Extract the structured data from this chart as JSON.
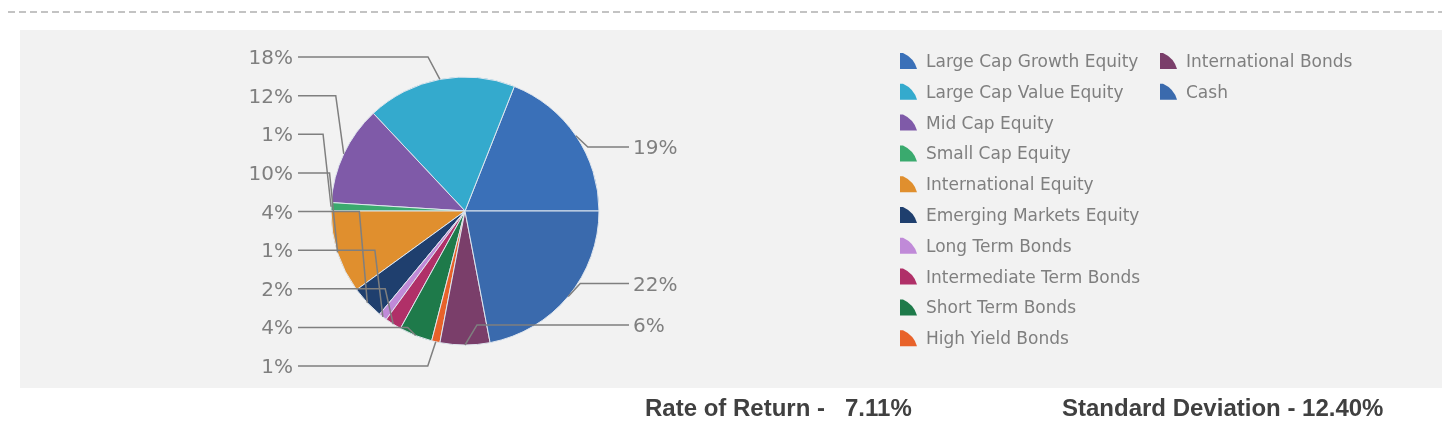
{
  "chart_data": {
    "type": "pie",
    "categories": [
      "Large Cap Growth Equity",
      "Large Cap Value Equity",
      "Mid Cap Equity",
      "Small Cap Equity",
      "International Equity",
      "Emerging Markets Equity",
      "Long Term Bonds",
      "Intermediate Term Bonds",
      "Short Term Bonds",
      "High Yield Bonds",
      "International Bonds",
      "Cash"
    ],
    "values": [
      19,
      18,
      12,
      1,
      10,
      4,
      1,
      2,
      4,
      1,
      6,
      22
    ],
    "colors": [
      "#3a70b8",
      "#34aacd",
      "#7f5aa8",
      "#3aaa6e",
      "#e08f2e",
      "#1f3f6e",
      "#c08ad8",
      "#b03068",
      "#1e7a4a",
      "#e8622a",
      "#7a3e6a",
      "#3a6aad"
    ],
    "value_labels": [
      "19%",
      "18%",
      "12%",
      "1%",
      "10%",
      "4%",
      "1%",
      "2%",
      "4%",
      "1%",
      "6%",
      "22%"
    ],
    "legend": "right",
    "annotations": [
      "Rate of Return -   7.11%",
      "Standard Deviation - 12.40%"
    ]
  }
}
